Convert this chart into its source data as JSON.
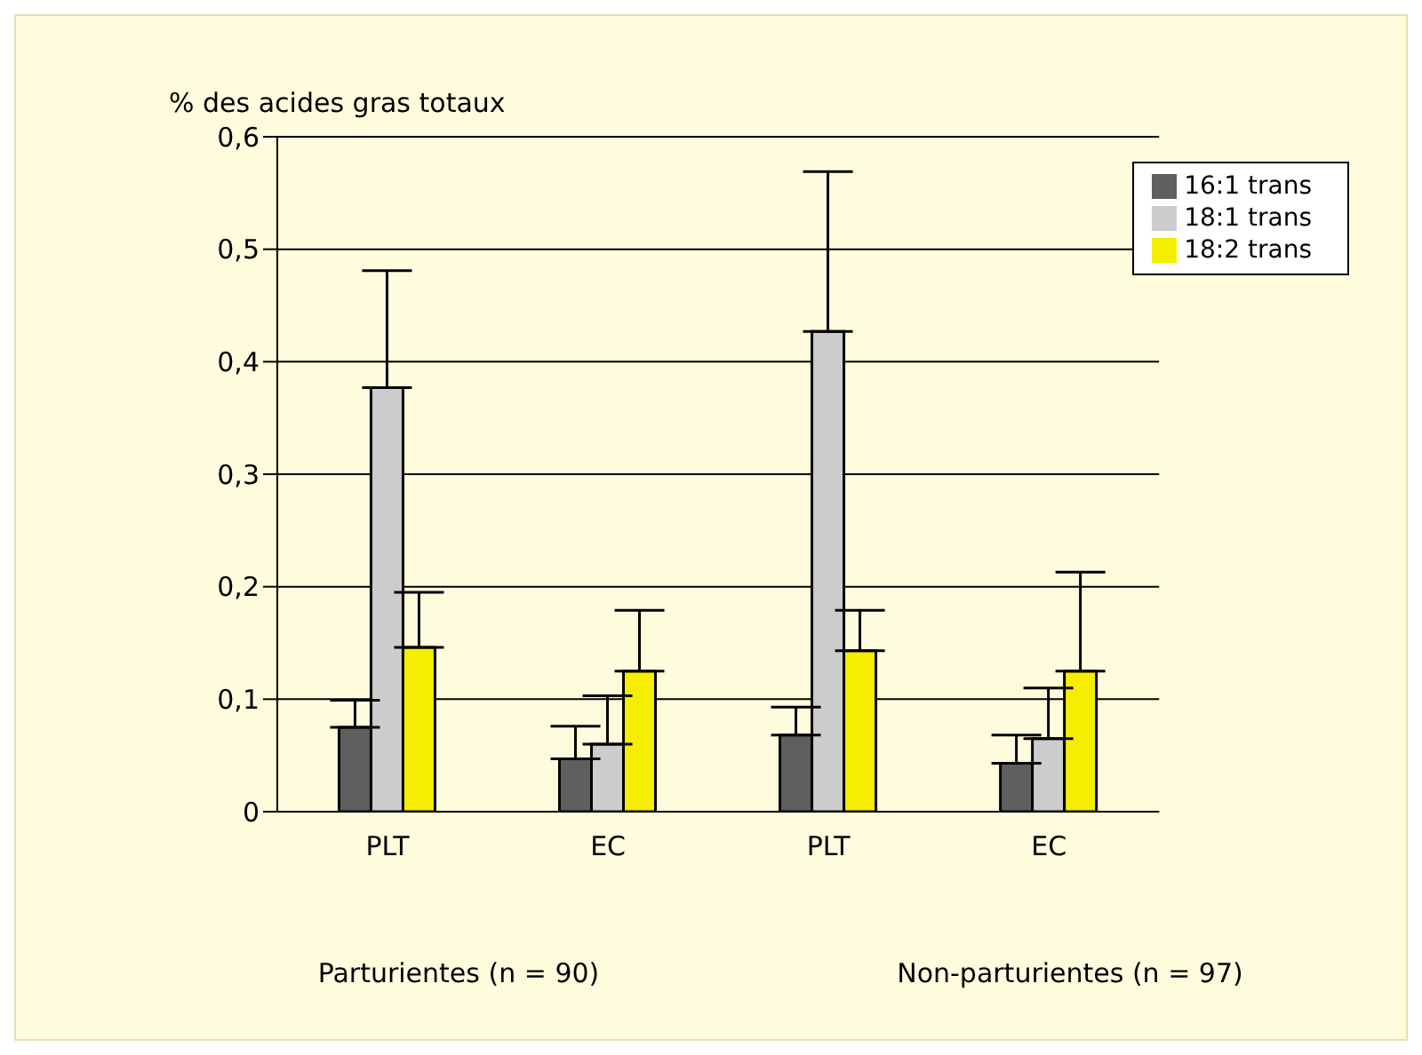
{
  "chart_data": {
    "type": "bar",
    "ylabel": "% des acides gras totaux",
    "categories": [
      "PLT",
      "EC",
      "PLT",
      "EC"
    ],
    "series": [
      {
        "name": "16:1 trans",
        "color": "#5f5f5f",
        "values": [
          0.075,
          0.047,
          0.068,
          0.043
        ],
        "errors": [
          [
            0.075,
            0.099
          ],
          [
            0.047,
            0.076
          ],
          [
            0.068,
            0.093
          ],
          [
            0.043,
            0.068
          ]
        ]
      },
      {
        "name": "18:1 trans",
        "color": "#cccccc",
        "values": [
          0.377,
          0.06,
          0.427,
          0.065
        ],
        "errors": [
          [
            0.377,
            0.481
          ],
          [
            0.06,
            0.103
          ],
          [
            0.427,
            0.569
          ],
          [
            0.065,
            0.11
          ]
        ]
      },
      {
        "name": "18:2 trans",
        "color": "#f5ee00",
        "values": [
          0.146,
          0.125,
          0.143,
          0.125
        ],
        "errors": [
          [
            0.146,
            0.195
          ],
          [
            0.125,
            0.179
          ],
          [
            0.143,
            0.179
          ],
          [
            0.125,
            0.213
          ]
        ]
      }
    ],
    "ylim": [
      0,
      0.6
    ],
    "yticks": [
      0,
      {
        "value": 0.1,
        "label": "0,1"
      },
      {
        "value": 0.2,
        "label": "0,2"
      },
      {
        "value": 0.3,
        "label": "0,3"
      },
      {
        "value": 0.4,
        "label": "0,4"
      },
      {
        "value": 0.5,
        "label": "0,5"
      },
      {
        "value": 0.6,
        "label": "0,6"
      }
    ],
    "grid": "y",
    "legend": "top right",
    "annotations": [
      "Parturientes (n = 90)",
      "Non-parturientes (n = 97)"
    ]
  }
}
